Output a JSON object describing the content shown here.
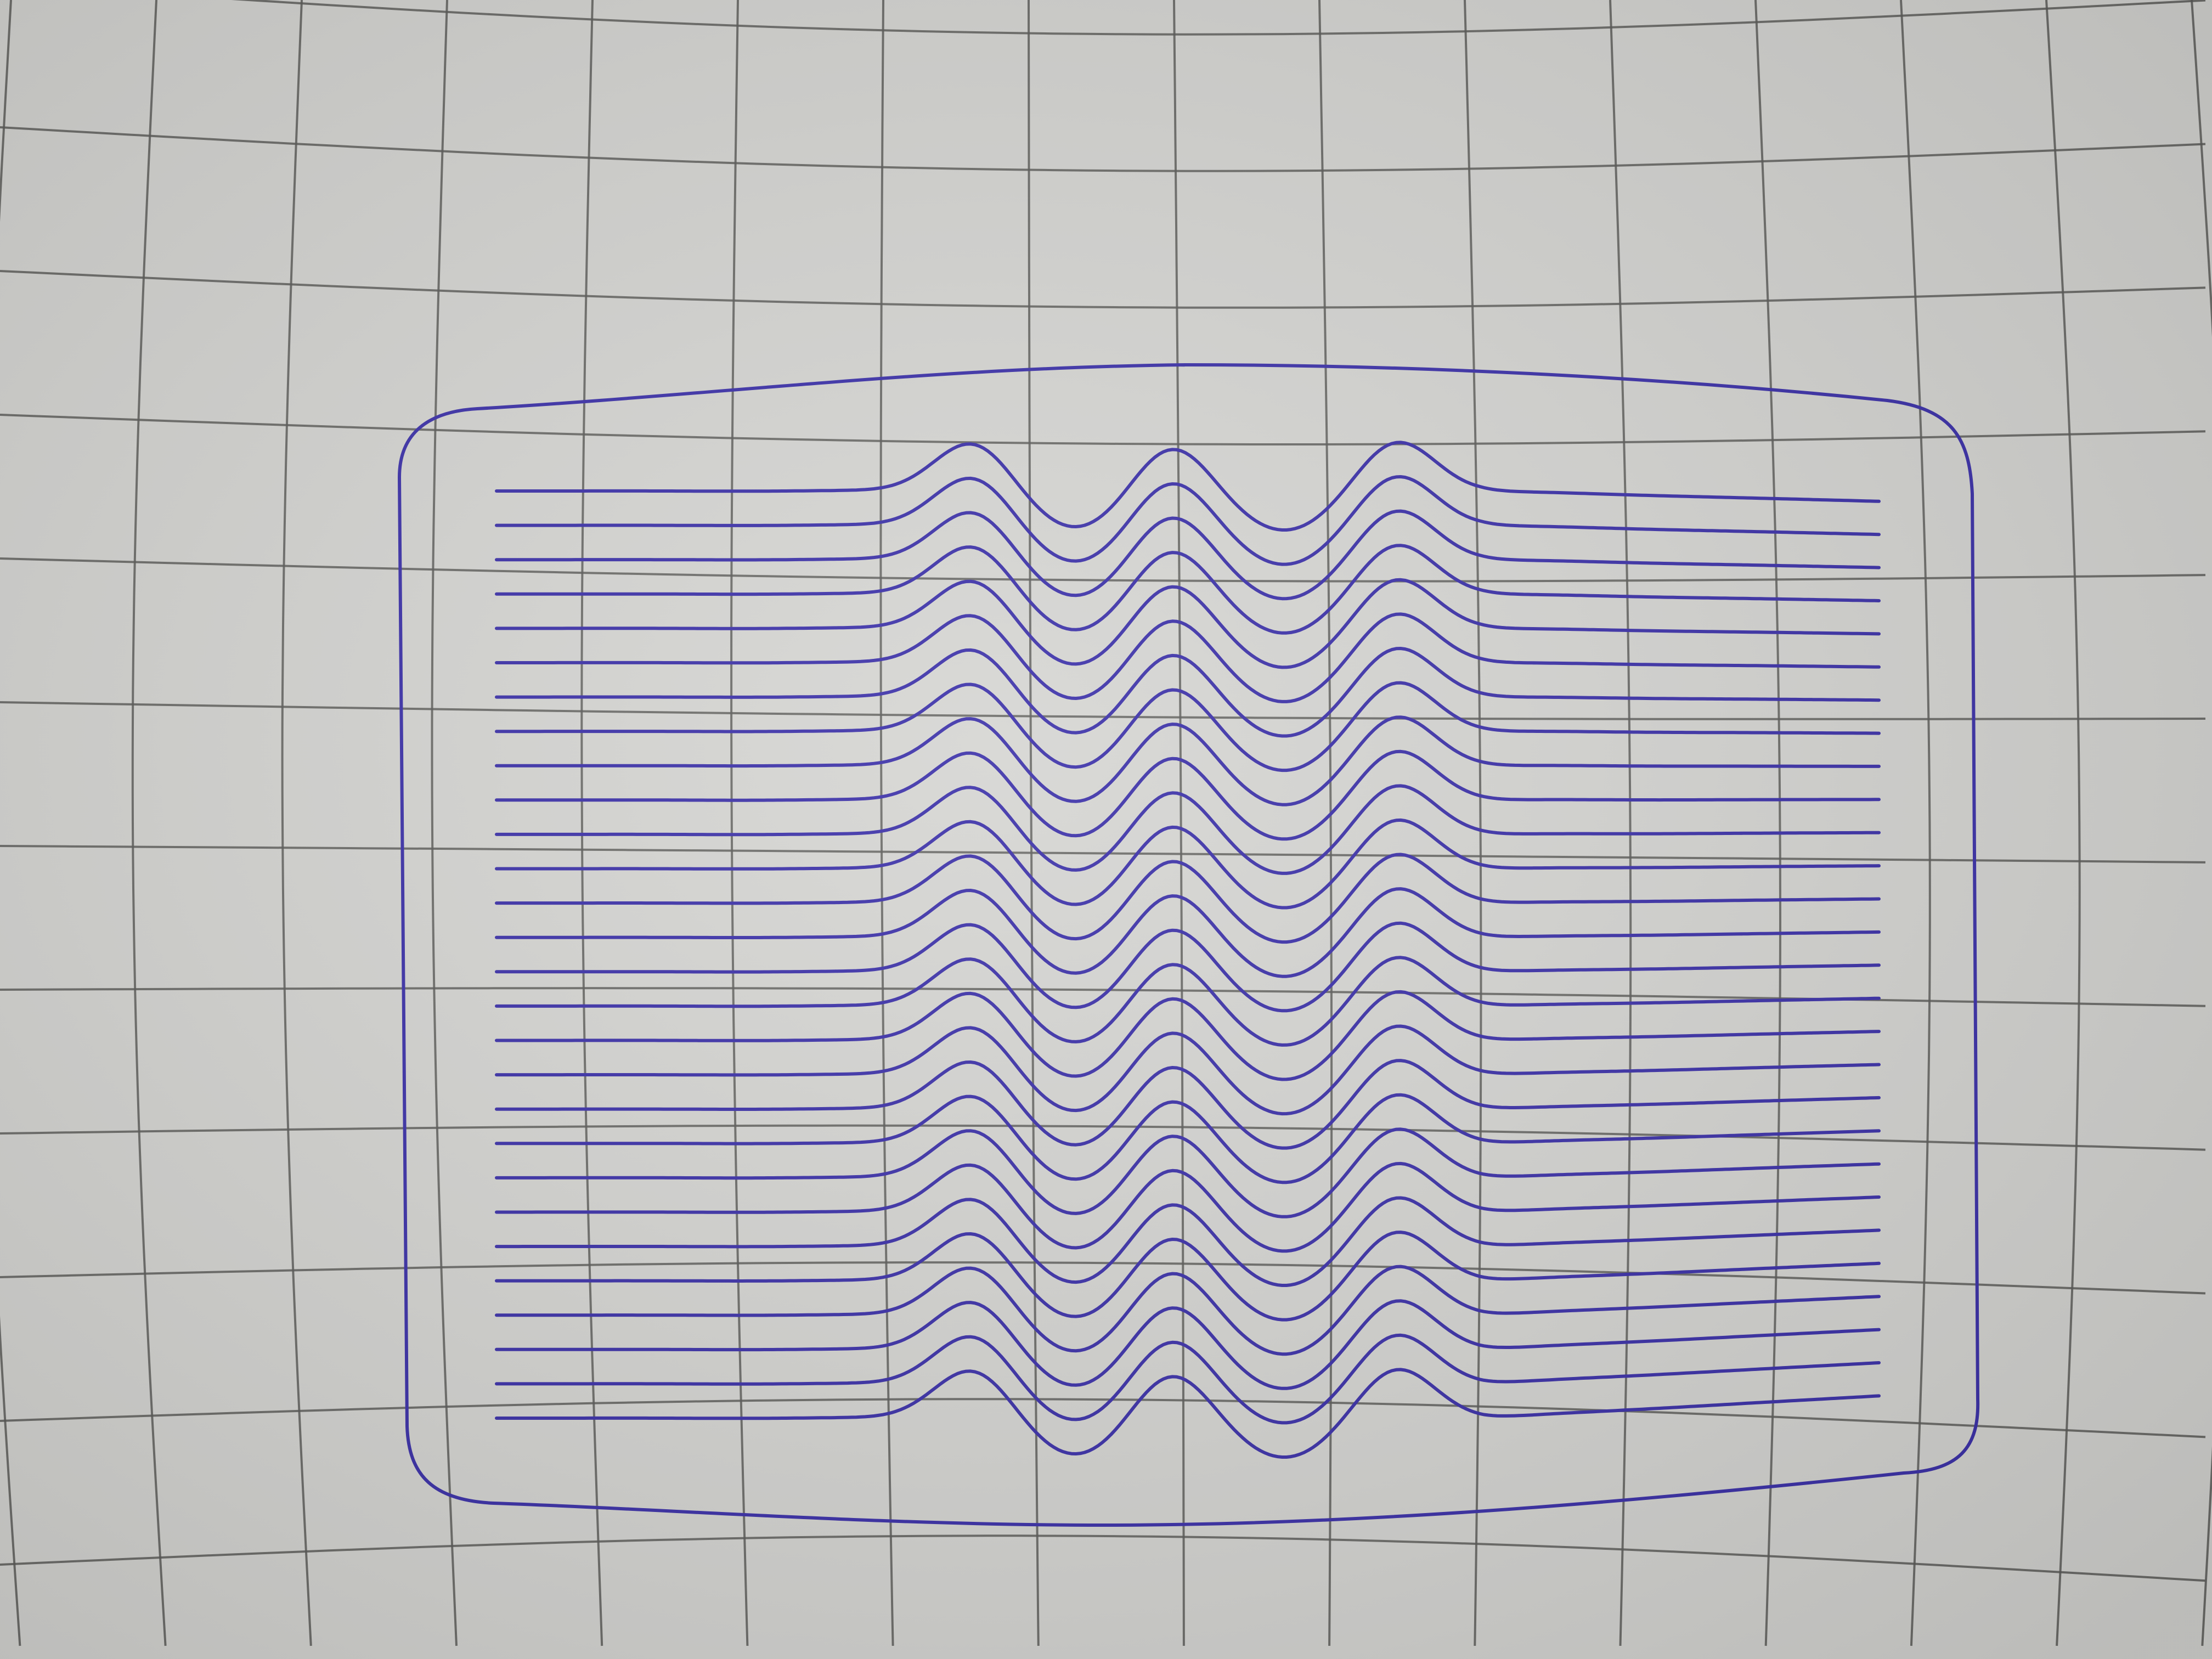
{
  "scene": {
    "subject": "pen-drawing-on-grid-paper",
    "colors": {
      "paper": "#d5d5d2",
      "paper_shadow": "#bcbcb8",
      "grid_line": "#5a5a58",
      "ink": "#3a2fa8"
    },
    "drawing": {
      "line_count": 28,
      "wave_peaks": 3
    }
  }
}
